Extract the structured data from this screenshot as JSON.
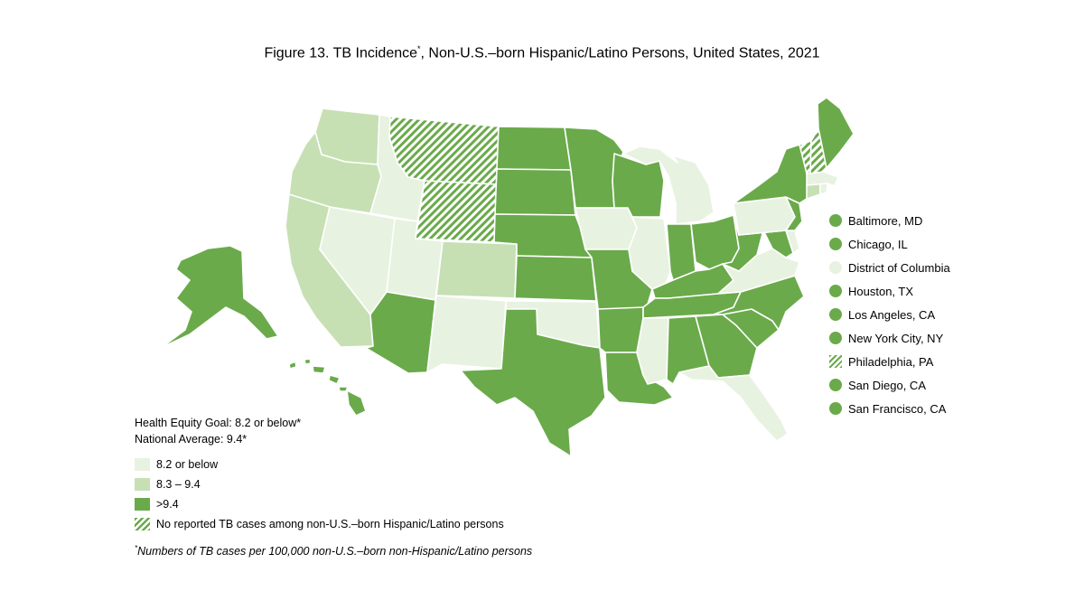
{
  "title": {
    "main": "Figure 13. TB Incidence",
    "mark": "*",
    "rest": ", Non-U.S.–born Hispanic/Latino Persons, United States, 2021"
  },
  "colors": {
    "low": "#e8f2e0",
    "mid": "#c6e0b4",
    "high": "#6aaa4a",
    "border": "#ffffff"
  },
  "goal_text": {
    "health_equity_goal": "Health Equity Goal:  8.2 or below*",
    "national_average": "National Average: 9.4*"
  },
  "legend": [
    {
      "label": "8.2 or below",
      "category": "low"
    },
    {
      "label": "8.3 – 9.4",
      "category": "mid"
    },
    {
      "label": ">9.4",
      "category": "high"
    },
    {
      "label": "No reported TB cases among non-U.S.–born Hispanic/Latino persons",
      "category": "none"
    }
  ],
  "cities": [
    {
      "name": "Baltimore, MD",
      "category": "high"
    },
    {
      "name": "Chicago, IL",
      "category": "high"
    },
    {
      "name": "District of Columbia",
      "category": "low"
    },
    {
      "name": "Houston, TX",
      "category": "high"
    },
    {
      "name": "Los Angeles, CA",
      "category": "high"
    },
    {
      "name": "New York City, NY",
      "category": "high"
    },
    {
      "name": "Philadelphia, PA",
      "category": "none"
    },
    {
      "name": "San Diego, CA",
      "category": "high"
    },
    {
      "name": "San Francisco, CA",
      "category": "high"
    }
  ],
  "footnote": {
    "mark": "*",
    "text": "Numbers of TB cases per 100,000 non-U.S.–born non-Hispanic/Latino persons"
  },
  "states": {
    "WA": "mid",
    "OR": "mid",
    "CA": "mid",
    "ID": "low",
    "NV": "low",
    "UT": "low",
    "AZ": "high",
    "MT": "none",
    "WY": "none",
    "CO": "mid",
    "NM": "low",
    "ND": "high",
    "SD": "high",
    "NE": "high",
    "KS": "high",
    "OK": "low",
    "TX": "high",
    "MN": "high",
    "IA": "low",
    "MO": "high",
    "AR": "high",
    "LA": "high",
    "WI": "high",
    "IL": "low",
    "MI": "low",
    "IN": "high",
    "OH": "high",
    "KY": "high",
    "TN": "high",
    "MS": "low",
    "AL": "high",
    "GA": "high",
    "FL": "low",
    "SC": "high",
    "NC": "high",
    "VA": "low",
    "WV": "high",
    "MD": "high",
    "DE": "low",
    "PA": "low",
    "NJ": "high",
    "NY": "high",
    "CT": "mid",
    "RI": "low",
    "MA": "low",
    "VT": "none",
    "NH": "none",
    "ME": "high",
    "AK": "high",
    "HI": "high"
  }
}
